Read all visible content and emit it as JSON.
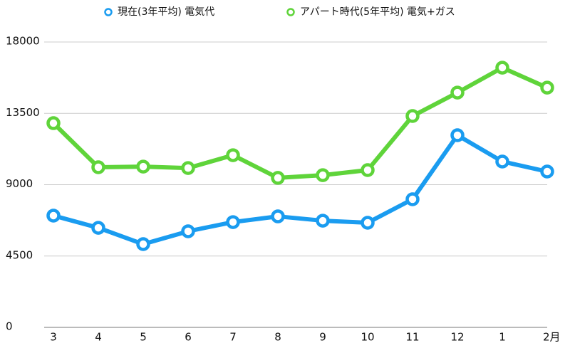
{
  "chart_data": {
    "type": "line",
    "categories": [
      "3",
      "4",
      "5",
      "6",
      "7",
      "8",
      "9",
      "10",
      "11",
      "12",
      "1",
      "2月"
    ],
    "series": [
      {
        "name": "現在(3年平均) 電気代",
        "color": "#1a9cf0",
        "values": [
          7050,
          6280,
          5250,
          6060,
          6640,
          7000,
          6730,
          6600,
          8080,
          12120,
          10460,
          9830
        ]
      },
      {
        "name": "アパート時代(5年平均) 電気+ガス",
        "color": "#5fd43a",
        "values": [
          12880,
          10100,
          10140,
          10050,
          10860,
          9430,
          9600,
          9920,
          13330,
          14810,
          16380,
          15120
        ]
      }
    ],
    "ylim": [
      0,
      18000
    ],
    "yticks": [
      0,
      4500,
      9000,
      13500,
      18000
    ],
    "grid": true
  }
}
